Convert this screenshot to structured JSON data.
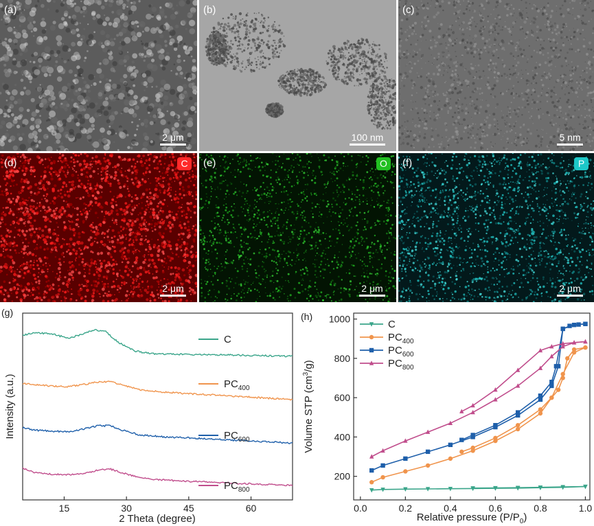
{
  "micrographs": [
    {
      "label": "(a)",
      "scale": "2 μm",
      "type": "SEM image",
      "bg": "#5c5c5c"
    },
    {
      "label": "(b)",
      "scale": "100 nm",
      "type": "TEM image",
      "bg": "#9a9a9a"
    },
    {
      "label": "(c)",
      "scale": "5 nm",
      "type": "HRTEM image",
      "bg": "#6e6e6e"
    },
    {
      "label": "(d)",
      "scale": "2 μm",
      "type": "EDS map",
      "element": "C",
      "color": "#ff2020",
      "bg": "#5a0000"
    },
    {
      "label": "(e)",
      "scale": "2 μm",
      "type": "EDS map",
      "element": "O",
      "color": "#22cc22",
      "bg": "#031403"
    },
    {
      "label": "(f)",
      "scale": "2 μm",
      "type": "EDS map",
      "element": "P",
      "color": "#1ec8c8",
      "bg": "#03191b"
    }
  ],
  "chart_data": [
    {
      "panel_label": "(g)",
      "type": "line",
      "xlabel": "2 Theta (degree)",
      "ylabel": "Intensity (a.u.)",
      "xlim": [
        5,
        70
      ],
      "xticks": [
        15,
        30,
        45,
        60
      ],
      "yticks": "none",
      "series": [
        {
          "name": "C",
          "color": "#3aa58a",
          "offset": 75,
          "x": [
            5,
            8,
            12,
            16,
            19,
            22,
            25,
            28,
            32,
            36,
            42,
            50,
            60,
            70
          ],
          "y": [
            12.5,
            13.8,
            13.2,
            10.8,
            12.8,
            15.5,
            14.5,
            8.5,
            3.5,
            2.0,
            1.6,
            1.4,
            1.0,
            0.5
          ]
        },
        {
          "name": "PC400",
          "label": "PC",
          "sub": "400",
          "color": "#f0944c",
          "offset": 50,
          "x": [
            5,
            8,
            12,
            16,
            20,
            23,
            26,
            29,
            33,
            38,
            45,
            55,
            65,
            70
          ],
          "y": [
            10.0,
            9.4,
            8.6,
            8.3,
            9.6,
            10.8,
            11.2,
            9.2,
            6.6,
            5.4,
            4.3,
            3.0,
            1.6,
            1.0
          ]
        },
        {
          "name": "PC600",
          "label": "PC",
          "sub": "600",
          "color": "#1e5faa",
          "offset": 25,
          "x": [
            5,
            8,
            12,
            16,
            20,
            23,
            26,
            29,
            33,
            38,
            45,
            55,
            65,
            70
          ],
          "y": [
            10.0,
            8.6,
            8.0,
            7.7,
            9.4,
            11.0,
            11.2,
            8.6,
            6.0,
            4.9,
            4.2,
            3.0,
            1.8,
            1.2
          ]
        },
        {
          "name": "PC800",
          "label": "PC",
          "sub": "800",
          "color": "#c04d8c",
          "offset": 0,
          "x": [
            5,
            8,
            12,
            16,
            20,
            23,
            26,
            29,
            33,
            38,
            45,
            55,
            65,
            70
          ],
          "y": [
            12.0,
            9.4,
            8.6,
            8.3,
            9.2,
            10.8,
            11.6,
            9.4,
            6.8,
            5.4,
            4.6,
            3.6,
            2.6,
            2.2
          ]
        }
      ],
      "ylim": [
        -6,
        100
      ]
    },
    {
      "panel_label": "(h)",
      "type": "line",
      "xlabel": "Relative pressure (P/P",
      "xlabel_sub": "0",
      "xlabel_end": ")",
      "ylabel": "Volume STP (cm",
      "ylabel_sup": "3",
      "ylabel_end": "/g)",
      "xlim": [
        -0.03,
        1.02
      ],
      "ylim": [
        80,
        1030
      ],
      "xticks": [
        0.0,
        0.2,
        0.4,
        0.6,
        0.8,
        1.0
      ],
      "xtick_labels": [
        "0.0",
        "0.2",
        "0.4",
        "0.6",
        "0.8",
        "1.0"
      ],
      "yticks": [
        200,
        400,
        600,
        800,
        1000
      ],
      "legend_position": "top-left",
      "series": [
        {
          "name": "C",
          "label": "C",
          "sub": "",
          "color": "#3aa58a",
          "marker": "triangle-down",
          "adsorption": {
            "x": [
              0.05,
              0.1,
              0.2,
              0.3,
              0.4,
              0.5,
              0.6,
              0.7,
              0.8,
              0.9,
              1.0
            ],
            "y": [
              130,
              133,
              135,
              136,
              137,
              138,
              139,
              140,
              142,
              144,
              148
            ]
          },
          "desorption": {
            "x": [
              1.0,
              0.9,
              0.8,
              0.7,
              0.6,
              0.5
            ],
            "y": [
              148,
              146,
              144,
              142,
              141,
              140
            ]
          }
        },
        {
          "name": "PC400",
          "label": "PC",
          "sub": "400",
          "color": "#f0944c",
          "marker": "circle",
          "adsorption": {
            "x": [
              0.05,
              0.1,
              0.2,
              0.3,
              0.4,
              0.5,
              0.6,
              0.7,
              0.8,
              0.85,
              0.9,
              0.95,
              1.0
            ],
            "y": [
              170,
              195,
              225,
              255,
              290,
              330,
              380,
              440,
              520,
              600,
              720,
              830,
              855
            ]
          },
          "desorption": {
            "x": [
              1.0,
              0.95,
              0.92,
              0.9,
              0.88,
              0.85,
              0.8,
              0.7,
              0.6,
              0.5,
              0.45
            ],
            "y": [
              855,
              845,
              800,
              700,
              640,
              600,
              540,
              460,
              395,
              345,
              325
            ]
          }
        },
        {
          "name": "PC600",
          "label": "PC",
          "sub": "600",
          "color": "#1e5faa",
          "marker": "square",
          "adsorption": {
            "x": [
              0.05,
              0.1,
              0.2,
              0.3,
              0.4,
              0.5,
              0.6,
              0.7,
              0.8,
              0.85,
              0.88,
              0.9,
              0.93,
              0.97,
              1.0
            ],
            "y": [
              230,
              255,
              290,
              325,
              360,
              400,
              450,
              510,
              590,
              660,
              760,
              950,
              965,
              972,
              975
            ]
          },
          "desorption": {
            "x": [
              1.0,
              0.95,
              0.9,
              0.87,
              0.85,
              0.8,
              0.7,
              0.6,
              0.5,
              0.45
            ],
            "y": [
              975,
              970,
              950,
              760,
              680,
              610,
              525,
              460,
              410,
              385
            ]
          }
        },
        {
          "name": "PC800",
          "label": "PC",
          "sub": "800",
          "color": "#c04d8c",
          "marker": "triangle-up",
          "adsorption": {
            "x": [
              0.05,
              0.1,
              0.2,
              0.3,
              0.4,
              0.5,
              0.6,
              0.7,
              0.8,
              0.85,
              0.9,
              0.95,
              1.0
            ],
            "y": [
              300,
              330,
              380,
              425,
              470,
              525,
              590,
              660,
              750,
              810,
              860,
              880,
              885
            ]
          },
          "desorption": {
            "x": [
              1.0,
              0.95,
              0.9,
              0.85,
              0.8,
              0.7,
              0.6,
              0.5,
              0.45
            ],
            "y": [
              885,
              880,
              875,
              860,
              840,
              740,
              640,
              560,
              530
            ]
          }
        }
      ]
    }
  ]
}
